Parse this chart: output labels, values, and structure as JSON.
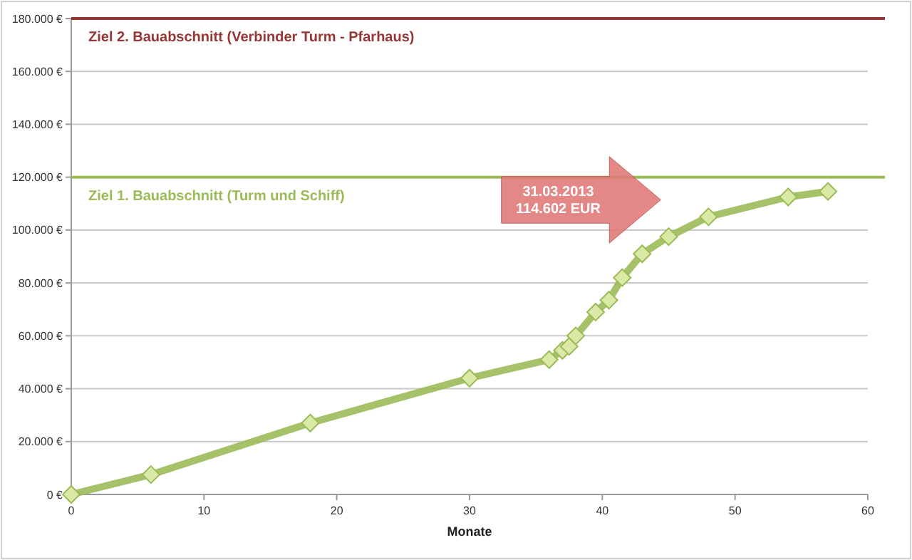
{
  "chart_data": {
    "type": "line",
    "xlabel": "Monate",
    "series": [
      {
        "color": "#9bbb59",
        "x": [
          0,
          6,
          18,
          30,
          36,
          37,
          37.5,
          38,
          39.5,
          40.5,
          41.5,
          43,
          45,
          48,
          54,
          57
        ],
        "values": [
          0,
          7500,
          27000,
          44000,
          51000,
          54500,
          56000,
          60000,
          69000,
          73500,
          82000,
          91000,
          97500,
          105000,
          112500,
          114602
        ]
      }
    ],
    "marker": "diamond",
    "line_style": "solid",
    "grid": "y",
    "xlim": [
      0,
      60
    ],
    "xticks": [
      0,
      10,
      20,
      30,
      40,
      50,
      60
    ],
    "ylim": [
      0,
      180000
    ],
    "yticks": [
      {
        "value": 0,
        "label": "0 €"
      },
      {
        "value": 20000,
        "label": "20.000 €"
      },
      {
        "value": 40000,
        "label": "40.000 €"
      },
      {
        "value": 60000,
        "label": "60.000 €"
      },
      {
        "value": 80000,
        "label": "80.000 €"
      },
      {
        "value": 100000,
        "label": "100.000 €"
      },
      {
        "value": 120000,
        "label": "120.000 €"
      },
      {
        "value": 140000,
        "label": "140.000 €"
      },
      {
        "value": 160000,
        "label": "160.000 €"
      },
      {
        "value": 180000,
        "label": "180.000 €"
      }
    ],
    "ref_lines": [
      {
        "axis": "y",
        "value": 180000,
        "label": "Ziel 2. Bauabschnitt (Verbinder Turm - Pfarhaus)",
        "color": "#953735"
      },
      {
        "axis": "y",
        "value": 120000,
        "label": "Ziel 1. Bauabschnitt (Turm und Schiff)",
        "color": "#9bbb59"
      }
    ],
    "annotations": [
      "31.03.2013\n114.602 EUR"
    ]
  }
}
